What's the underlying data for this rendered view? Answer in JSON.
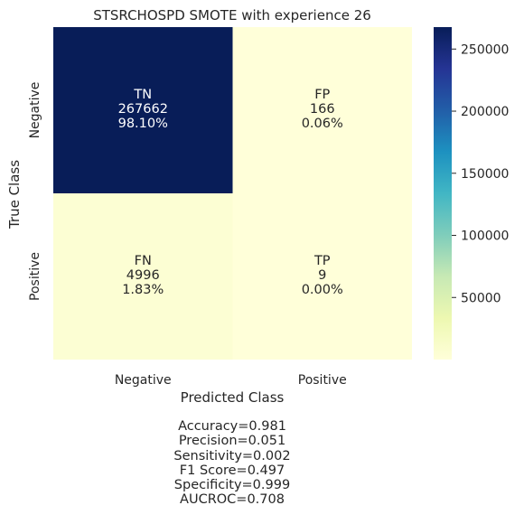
{
  "chart_data": {
    "type": "heatmap",
    "title": "STSRCHOSPD SMOTE with experience 26",
    "xlabel": "Predicted Class",
    "ylabel": "True Class",
    "x_categories": [
      "Negative",
      "Positive"
    ],
    "y_categories": [
      "Negative",
      "Positive"
    ],
    "cells": [
      [
        {
          "label": "TN",
          "count": "267662",
          "percent": "98.10%",
          "value": 267662
        },
        {
          "label": "FP",
          "count": "166",
          "percent": "0.06%",
          "value": 166
        }
      ],
      [
        {
          "label": "FN",
          "count": "4996",
          "percent": "1.83%",
          "value": 4996
        },
        {
          "label": "TP",
          "count": "9",
          "percent": "0.00%",
          "value": 9
        }
      ]
    ],
    "colormap": "YlGnBu",
    "colorbar": {
      "min": 9,
      "max": 267662,
      "ticks": [
        50000,
        100000,
        150000,
        200000,
        250000
      ],
      "tick_labels": [
        "50000",
        "100000",
        "150000",
        "200000",
        "250000"
      ]
    },
    "metrics": [
      "Accuracy=0.981",
      "Precision=0.051",
      "Sensitivity=0.002",
      "F1 Score=0.497",
      "Specificity=0.999",
      "AUCROC=0.708"
    ]
  }
}
